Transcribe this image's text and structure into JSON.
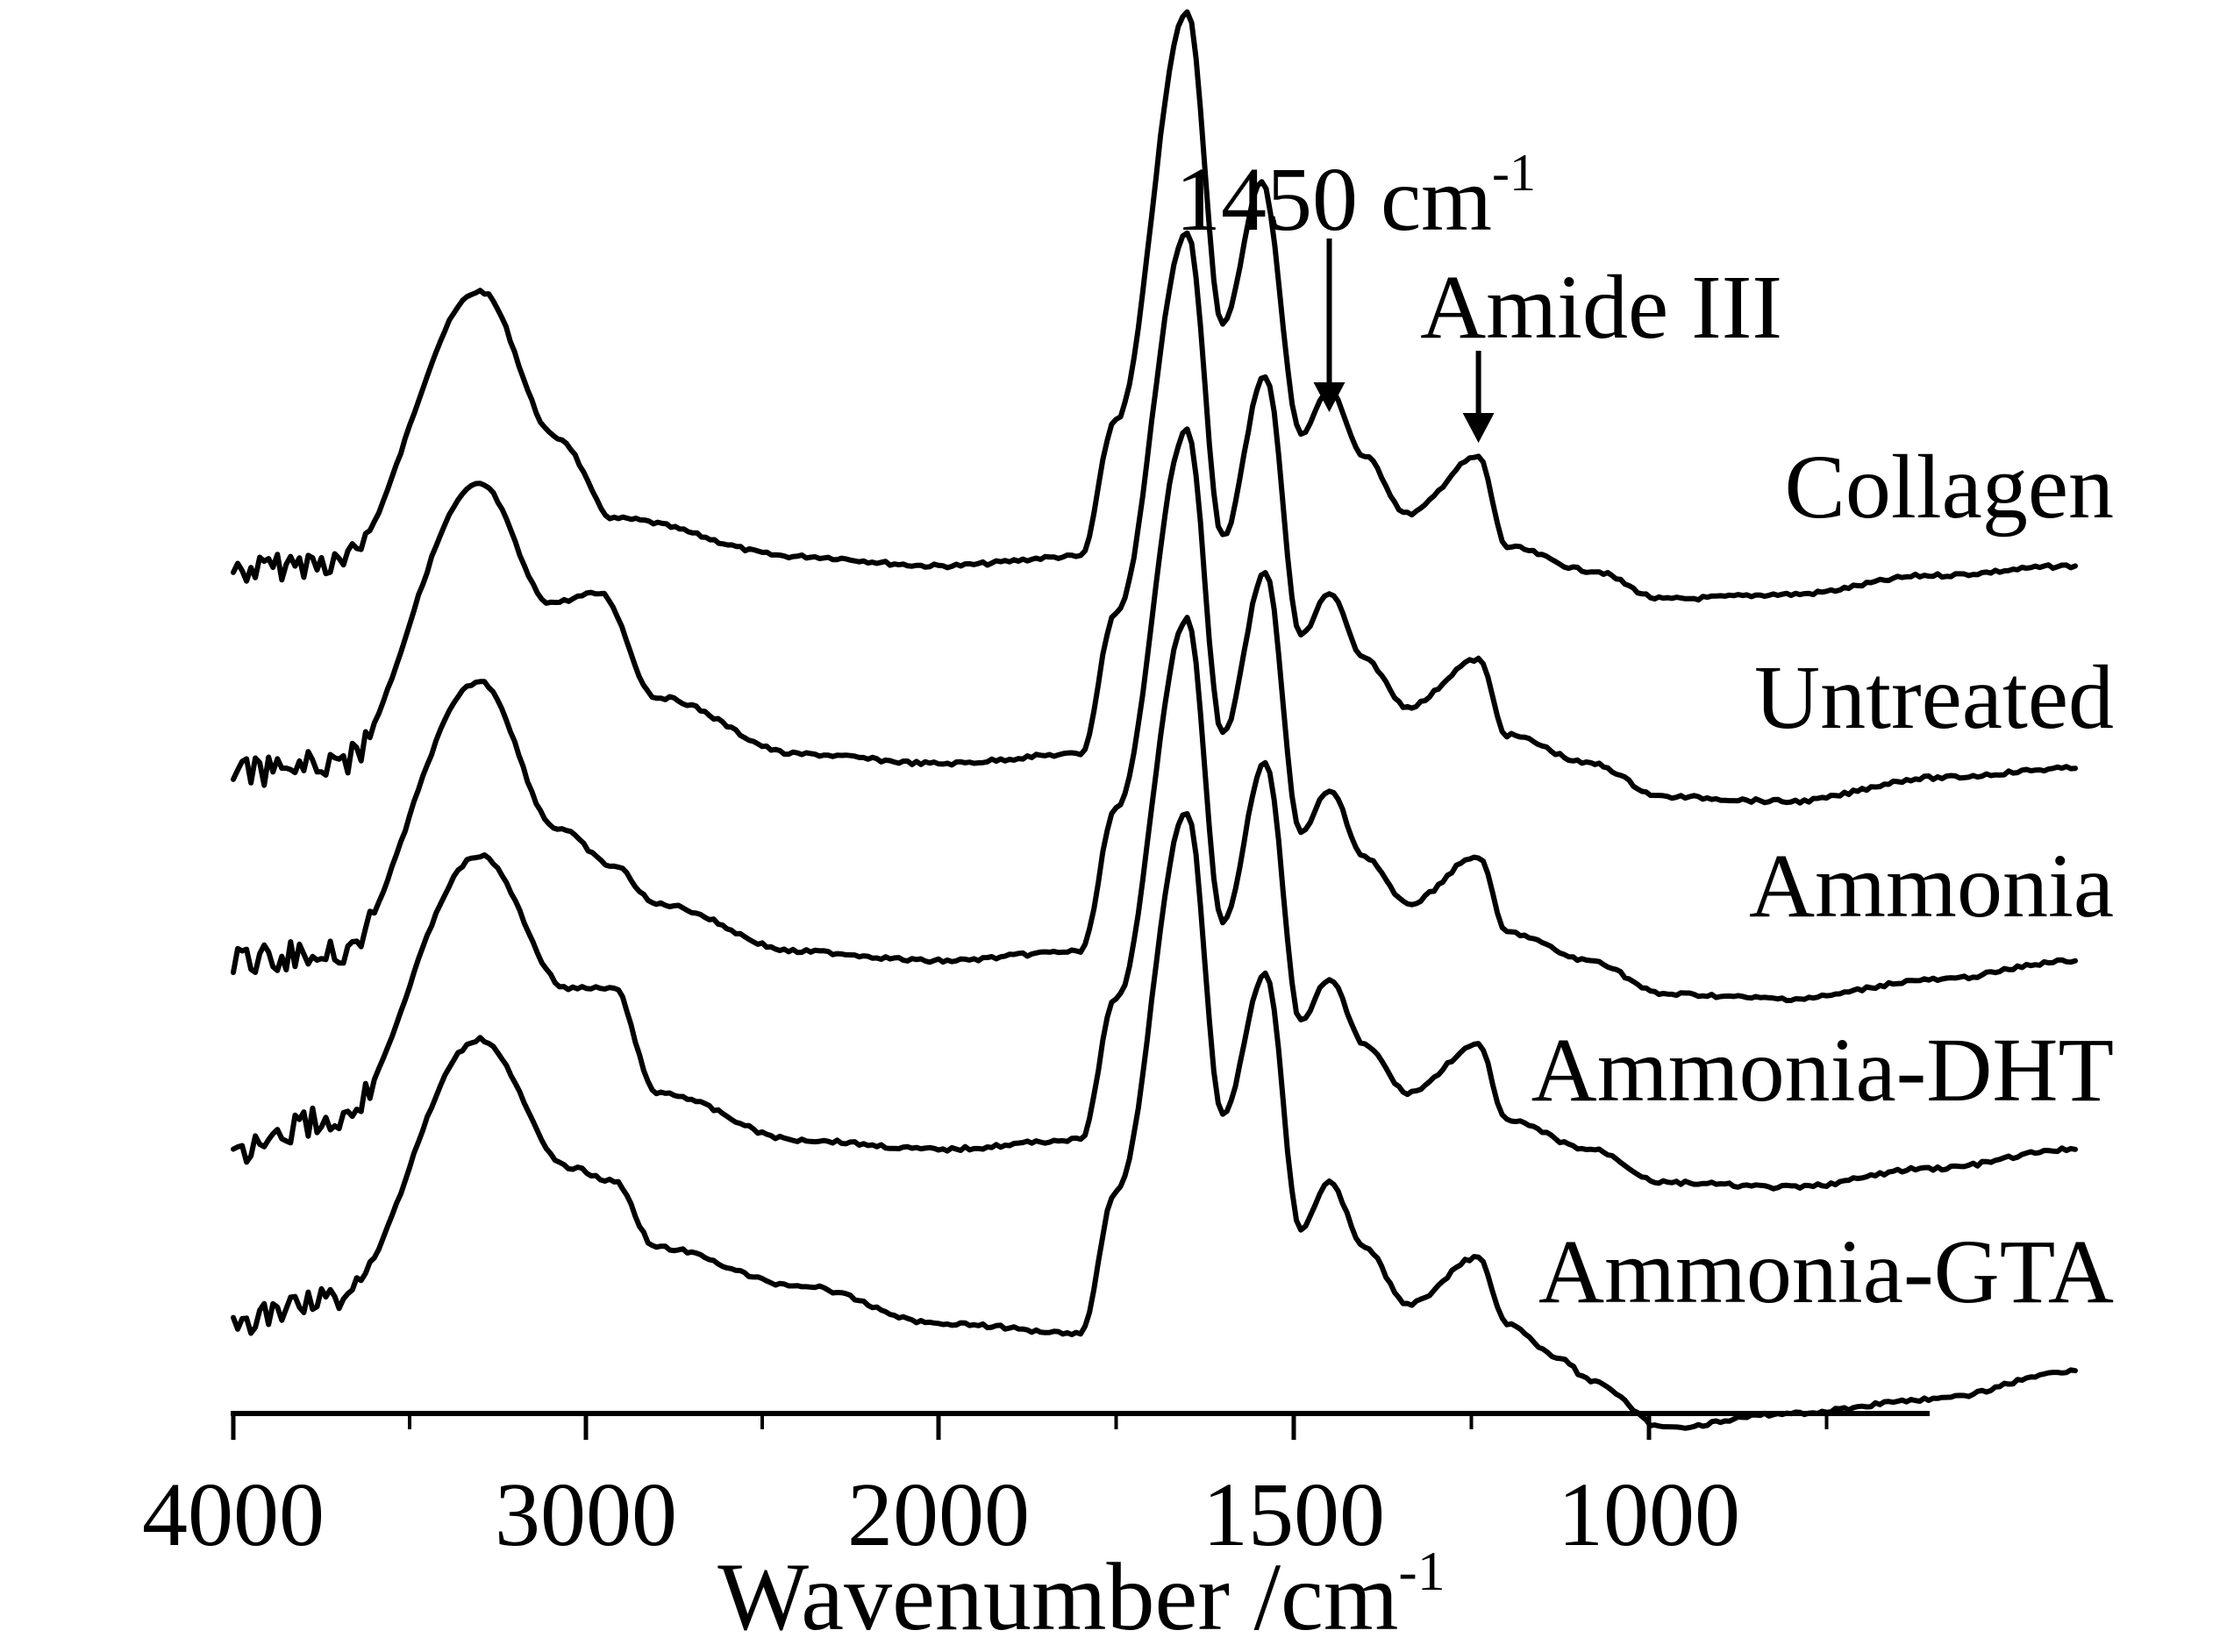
{
  "chart_data": {
    "type": "line",
    "xlabel": "Wavenumber /cm",
    "xlabel_sup": "-1",
    "xlim": [
      4000,
      400
    ],
    "x_ticks": [
      4000,
      3000,
      2000,
      1500,
      1000
    ],
    "x_tick_labels": [
      "4000",
      "3000",
      "2000",
      "1500",
      "1000"
    ],
    "axis_break_approx": 2000,
    "y_axis_visible": false,
    "grid": false,
    "series": [
      {
        "name": "Collagen",
        "points": [
          [
            4000,
            0.38
          ],
          [
            3700,
            0.4
          ],
          [
            3300,
            0.97
          ],
          [
            3080,
            0.66
          ],
          [
            2920,
            0.49
          ],
          [
            2400,
            0.41
          ],
          [
            2000,
            0.39
          ],
          [
            1800,
            0.41
          ],
          [
            1750,
            0.7
          ],
          [
            1650,
            1.56
          ],
          [
            1600,
            0.9
          ],
          [
            1545,
            1.2
          ],
          [
            1490,
            0.67
          ],
          [
            1450,
            0.76
          ],
          [
            1400,
            0.62
          ],
          [
            1340,
            0.5
          ],
          [
            1240,
            0.62
          ],
          [
            1200,
            0.43
          ],
          [
            1082,
            0.38
          ],
          [
            980,
            0.32
          ],
          [
            800,
            0.33
          ],
          [
            600,
            0.37
          ],
          [
            400,
            0.39
          ]
        ]
      },
      {
        "name": "Untreated",
        "points": [
          [
            4000,
            0.36
          ],
          [
            3700,
            0.38
          ],
          [
            3300,
            0.97
          ],
          [
            3100,
            0.72
          ],
          [
            2960,
            0.74
          ],
          [
            2800,
            0.52
          ],
          [
            2400,
            0.4
          ],
          [
            2000,
            0.38
          ],
          [
            1800,
            0.4
          ],
          [
            1750,
            0.7
          ],
          [
            1650,
            1.5
          ],
          [
            1600,
            0.86
          ],
          [
            1540,
            1.2
          ],
          [
            1490,
            0.65
          ],
          [
            1450,
            0.74
          ],
          [
            1400,
            0.6
          ],
          [
            1340,
            0.5
          ],
          [
            1240,
            0.6
          ],
          [
            1200,
            0.44
          ],
          [
            1082,
            0.38
          ],
          [
            980,
            0.31
          ],
          [
            800,
            0.3
          ],
          [
            600,
            0.35
          ],
          [
            400,
            0.37
          ]
        ]
      },
      {
        "name": "Ammonia",
        "points": [
          [
            4000,
            0.38
          ],
          [
            3700,
            0.4
          ],
          [
            3300,
            0.97
          ],
          [
            3080,
            0.66
          ],
          [
            2920,
            0.58
          ],
          [
            2800,
            0.5
          ],
          [
            2400,
            0.4
          ],
          [
            2000,
            0.38
          ],
          [
            1800,
            0.4
          ],
          [
            1750,
            0.7
          ],
          [
            1650,
            1.5
          ],
          [
            1600,
            0.86
          ],
          [
            1540,
            1.2
          ],
          [
            1490,
            0.65
          ],
          [
            1450,
            0.74
          ],
          [
            1400,
            0.6
          ],
          [
            1340,
            0.5
          ],
          [
            1240,
            0.6
          ],
          [
            1200,
            0.44
          ],
          [
            1082,
            0.38
          ],
          [
            980,
            0.31
          ],
          [
            800,
            0.3
          ],
          [
            600,
            0.34
          ],
          [
            400,
            0.38
          ]
        ]
      },
      {
        "name": "Ammonia-DHT",
        "points": [
          [
            4000,
            0.38
          ],
          [
            3700,
            0.45
          ],
          [
            3300,
            1.0
          ],
          [
            3050,
            0.72
          ],
          [
            2920,
            0.72
          ],
          [
            2800,
            0.5
          ],
          [
            2400,
            0.4
          ],
          [
            2000,
            0.38
          ],
          [
            1800,
            0.4
          ],
          [
            1750,
            0.7
          ],
          [
            1650,
            1.5
          ],
          [
            1600,
            0.86
          ],
          [
            1540,
            1.2
          ],
          [
            1490,
            0.65
          ],
          [
            1450,
            0.74
          ],
          [
            1400,
            0.6
          ],
          [
            1340,
            0.5
          ],
          [
            1240,
            0.6
          ],
          [
            1200,
            0.44
          ],
          [
            1082,
            0.38
          ],
          [
            980,
            0.31
          ],
          [
            800,
            0.3
          ],
          [
            600,
            0.34
          ],
          [
            400,
            0.38
          ]
        ]
      },
      {
        "name": "Ammonia-GTA",
        "points": [
          [
            4000,
            0.42
          ],
          [
            3700,
            0.48
          ],
          [
            3300,
            1.02
          ],
          [
            3050,
            0.75
          ],
          [
            2920,
            0.72
          ],
          [
            2800,
            0.58
          ],
          [
            2400,
            0.5
          ],
          [
            2000,
            0.42
          ],
          [
            1800,
            0.4
          ],
          [
            1750,
            0.7
          ],
          [
            1650,
            1.5
          ],
          [
            1600,
            0.86
          ],
          [
            1540,
            1.16
          ],
          [
            1490,
            0.62
          ],
          [
            1450,
            0.72
          ],
          [
            1400,
            0.58
          ],
          [
            1340,
            0.46
          ],
          [
            1240,
            0.56
          ],
          [
            1200,
            0.42
          ],
          [
            1130,
            0.35
          ],
          [
            1082,
            0.3
          ],
          [
            980,
            0.2
          ],
          [
            800,
            0.23
          ],
          [
            600,
            0.26
          ],
          [
            400,
            0.32
          ]
        ]
      }
    ],
    "annotations": [
      {
        "text": "1450 cm",
        "sup": "-1",
        "x": 1450
      },
      {
        "text": "Amide III",
        "x": 1240
      }
    ]
  }
}
